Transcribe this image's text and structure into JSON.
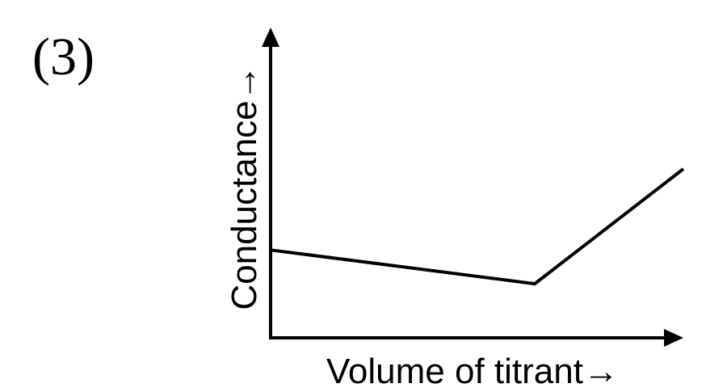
{
  "option_label": "(3)",
  "chart_data": {
    "type": "line",
    "title": "",
    "xlabel": "Volume of titrant→",
    "ylabel": "Conductance→",
    "grid": false,
    "x_ticks_shown": false,
    "y_ticks_shown": false,
    "xlim": [
      0,
      1
    ],
    "ylim": [
      0,
      1
    ],
    "series": [
      {
        "x": [
          0.0,
          0.64,
          1.0
        ],
        "y": [
          0.26,
          0.16,
          0.5
        ]
      }
    ]
  }
}
